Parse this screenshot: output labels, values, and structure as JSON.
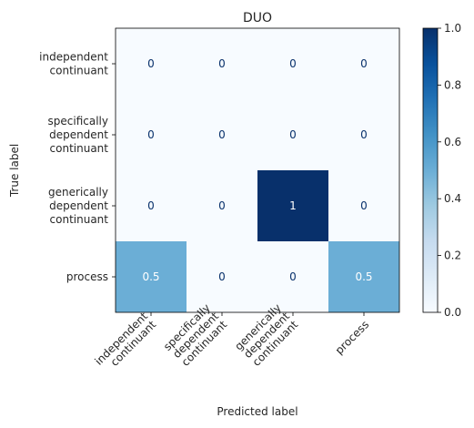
{
  "chart_data": {
    "type": "heatmap",
    "title": "DUO",
    "xlabel": "Predicted label",
    "ylabel": "True label",
    "categories": [
      "independent continuant",
      "specifically dependent continuant",
      "generically dependent continuant",
      "process"
    ],
    "y_tick_lines": [
      [
        "independent",
        "continuant"
      ],
      [
        "specifically",
        "dependent",
        "continuant"
      ],
      [
        "generically",
        "dependent",
        "continuant"
      ],
      [
        "process"
      ]
    ],
    "x_tick_lines": [
      [
        "independent",
        "continuant"
      ],
      [
        "specifically",
        "dependent",
        "continuant"
      ],
      [
        "generically",
        "dependent",
        "continuant"
      ],
      [
        "process"
      ]
    ],
    "matrix": [
      [
        0,
        0,
        0,
        0
      ],
      [
        0,
        0,
        0,
        0
      ],
      [
        0,
        0,
        1,
        0
      ],
      [
        0.5,
        0,
        0,
        0.5
      ]
    ],
    "cell_labels": [
      [
        "0",
        "0",
        "0",
        "0"
      ],
      [
        "0",
        "0",
        "0",
        "0"
      ],
      [
        "0",
        "0",
        "1",
        "0"
      ],
      [
        "0.5",
        "0",
        "0",
        "0.5"
      ]
    ],
    "colorbar": {
      "colormap": "Blues",
      "range": [
        0,
        1
      ],
      "ticks": [
        "0.0",
        "0.2",
        "0.4",
        "0.6",
        "0.8",
        "1.0"
      ]
    },
    "colors": {
      "low": "#f7fbff",
      "mid": "#6baed6",
      "high": "#08306b"
    }
  }
}
